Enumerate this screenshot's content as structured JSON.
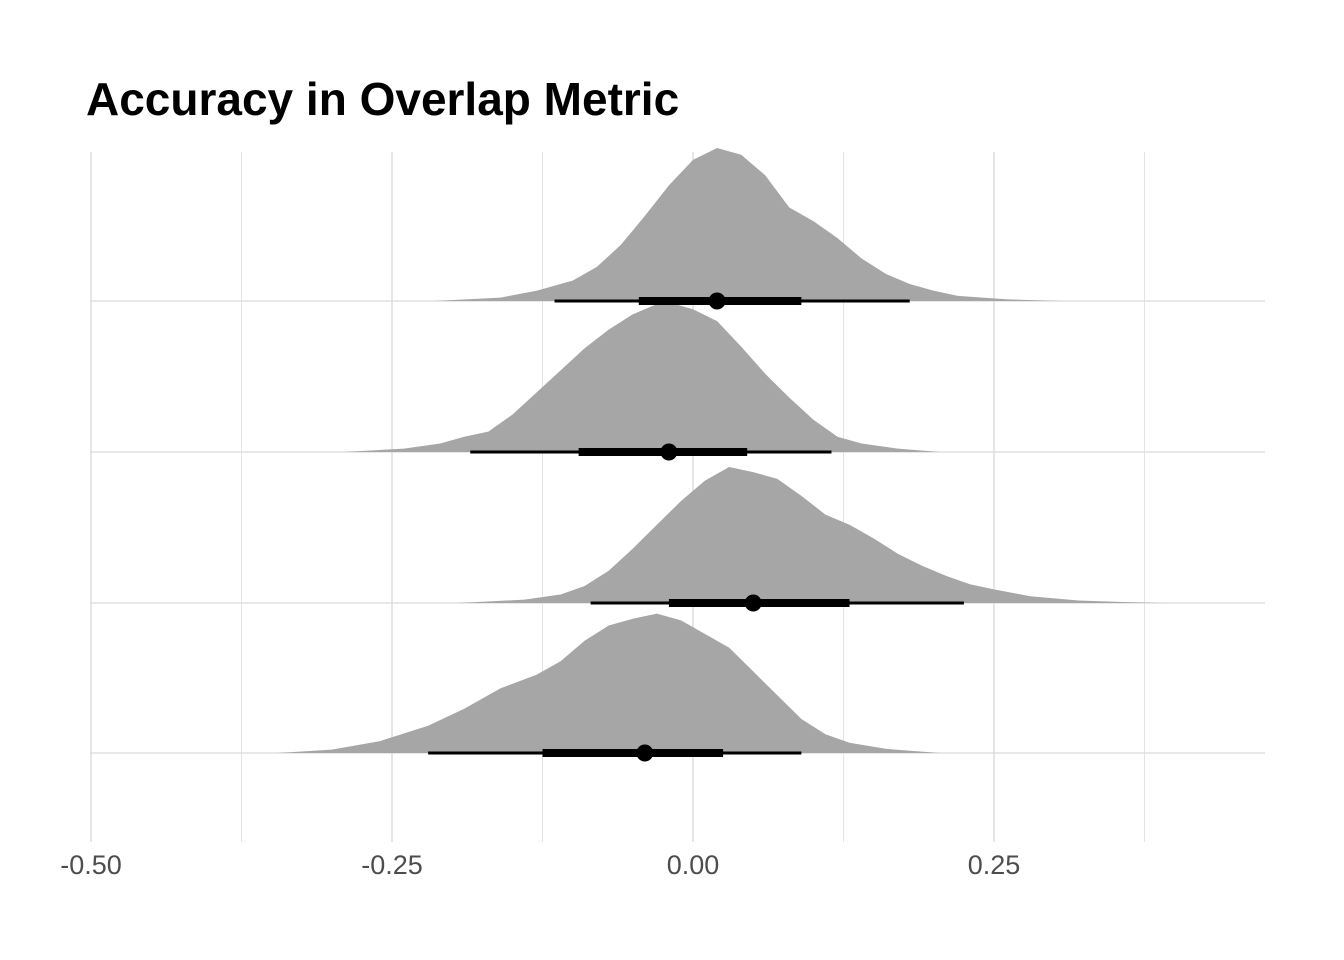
{
  "chart_data": {
    "type": "area",
    "subtype": "stacked half-eye (density ridgeline with point and interval)",
    "title": "Accuracy in Overlap Metric",
    "xlabel": "",
    "ylabel": "",
    "xlim": [
      -0.5,
      0.45
    ],
    "x_ticks": [
      -0.5,
      -0.25,
      0.0,
      0.25
    ],
    "x_tick_labels": [
      "-0.50",
      "-0.25",
      "0.00",
      "0.25"
    ],
    "grid": true,
    "legend": "none",
    "colors": {
      "density": "#a6a6a6",
      "interval": "#000000",
      "grid": "#d9d9d9",
      "tick_text": "#4d4d4d"
    },
    "series": [
      {
        "point": 0.02,
        "inner": [
          -0.045,
          0.09
        ],
        "outer": [
          -0.115,
          0.18
        ],
        "range": [
          -0.215,
          0.305
        ],
        "height": 0.9,
        "density": [
          [
            -0.215,
            0
          ],
          [
            -0.16,
            0.02
          ],
          [
            -0.13,
            0.06
          ],
          [
            -0.1,
            0.12
          ],
          [
            -0.08,
            0.2
          ],
          [
            -0.06,
            0.33
          ],
          [
            -0.04,
            0.5
          ],
          [
            -0.02,
            0.68
          ],
          [
            0.0,
            0.83
          ],
          [
            0.02,
            0.9
          ],
          [
            0.04,
            0.86
          ],
          [
            0.06,
            0.74
          ],
          [
            0.08,
            0.55
          ],
          [
            0.1,
            0.47
          ],
          [
            0.12,
            0.37
          ],
          [
            0.14,
            0.25
          ],
          [
            0.16,
            0.16
          ],
          [
            0.18,
            0.1
          ],
          [
            0.2,
            0.06
          ],
          [
            0.22,
            0.03
          ],
          [
            0.26,
            0.01
          ],
          [
            0.305,
            0
          ]
        ]
      },
      {
        "point": -0.02,
        "inner": [
          -0.095,
          0.045
        ],
        "outer": [
          -0.185,
          0.115
        ],
        "range": [
          -0.29,
          0.205
        ],
        "height": 0.88,
        "density": [
          [
            -0.29,
            0
          ],
          [
            -0.24,
            0.02
          ],
          [
            -0.21,
            0.05
          ],
          [
            -0.19,
            0.09
          ],
          [
            -0.17,
            0.12
          ],
          [
            -0.15,
            0.22
          ],
          [
            -0.13,
            0.35
          ],
          [
            -0.11,
            0.48
          ],
          [
            -0.09,
            0.61
          ],
          [
            -0.07,
            0.72
          ],
          [
            -0.05,
            0.81
          ],
          [
            -0.03,
            0.87
          ],
          [
            -0.02,
            0.88
          ],
          [
            0.0,
            0.84
          ],
          [
            0.02,
            0.77
          ],
          [
            0.04,
            0.62
          ],
          [
            0.06,
            0.46
          ],
          [
            0.08,
            0.32
          ],
          [
            0.1,
            0.19
          ],
          [
            0.12,
            0.09
          ],
          [
            0.14,
            0.05
          ],
          [
            0.17,
            0.02
          ],
          [
            0.205,
            0
          ]
        ]
      },
      {
        "point": 0.05,
        "inner": [
          -0.02,
          0.13
        ],
        "outer": [
          -0.085,
          0.225
        ],
        "range": [
          -0.195,
          0.39
        ],
        "height": 0.8,
        "density": [
          [
            -0.195,
            0
          ],
          [
            -0.14,
            0.02
          ],
          [
            -0.11,
            0.05
          ],
          [
            -0.09,
            0.1
          ],
          [
            -0.07,
            0.19
          ],
          [
            -0.05,
            0.32
          ],
          [
            -0.03,
            0.46
          ],
          [
            -0.01,
            0.6
          ],
          [
            0.01,
            0.72
          ],
          [
            0.03,
            0.8
          ],
          [
            0.05,
            0.77
          ],
          [
            0.07,
            0.73
          ],
          [
            0.09,
            0.63
          ],
          [
            0.11,
            0.52
          ],
          [
            0.13,
            0.46
          ],
          [
            0.15,
            0.38
          ],
          [
            0.17,
            0.29
          ],
          [
            0.19,
            0.22
          ],
          [
            0.21,
            0.16
          ],
          [
            0.23,
            0.11
          ],
          [
            0.25,
            0.08
          ],
          [
            0.28,
            0.04
          ],
          [
            0.32,
            0.015
          ],
          [
            0.36,
            0.005
          ],
          [
            0.39,
            0
          ]
        ]
      },
      {
        "point": -0.04,
        "inner": [
          -0.125,
          0.025
        ],
        "outer": [
          -0.22,
          0.09
        ],
        "range": [
          -0.345,
          0.205
        ],
        "height": 0.82,
        "density": [
          [
            -0.345,
            0
          ],
          [
            -0.3,
            0.02
          ],
          [
            -0.26,
            0.07
          ],
          [
            -0.22,
            0.16
          ],
          [
            -0.19,
            0.26
          ],
          [
            -0.16,
            0.38
          ],
          [
            -0.13,
            0.46
          ],
          [
            -0.11,
            0.54
          ],
          [
            -0.09,
            0.66
          ],
          [
            -0.07,
            0.75
          ],
          [
            -0.05,
            0.79
          ],
          [
            -0.03,
            0.82
          ],
          [
            -0.01,
            0.78
          ],
          [
            0.01,
            0.7
          ],
          [
            0.03,
            0.62
          ],
          [
            0.05,
            0.48
          ],
          [
            0.07,
            0.34
          ],
          [
            0.09,
            0.2
          ],
          [
            0.11,
            0.11
          ],
          [
            0.13,
            0.06
          ],
          [
            0.16,
            0.025
          ],
          [
            0.205,
            0
          ]
        ]
      }
    ]
  }
}
